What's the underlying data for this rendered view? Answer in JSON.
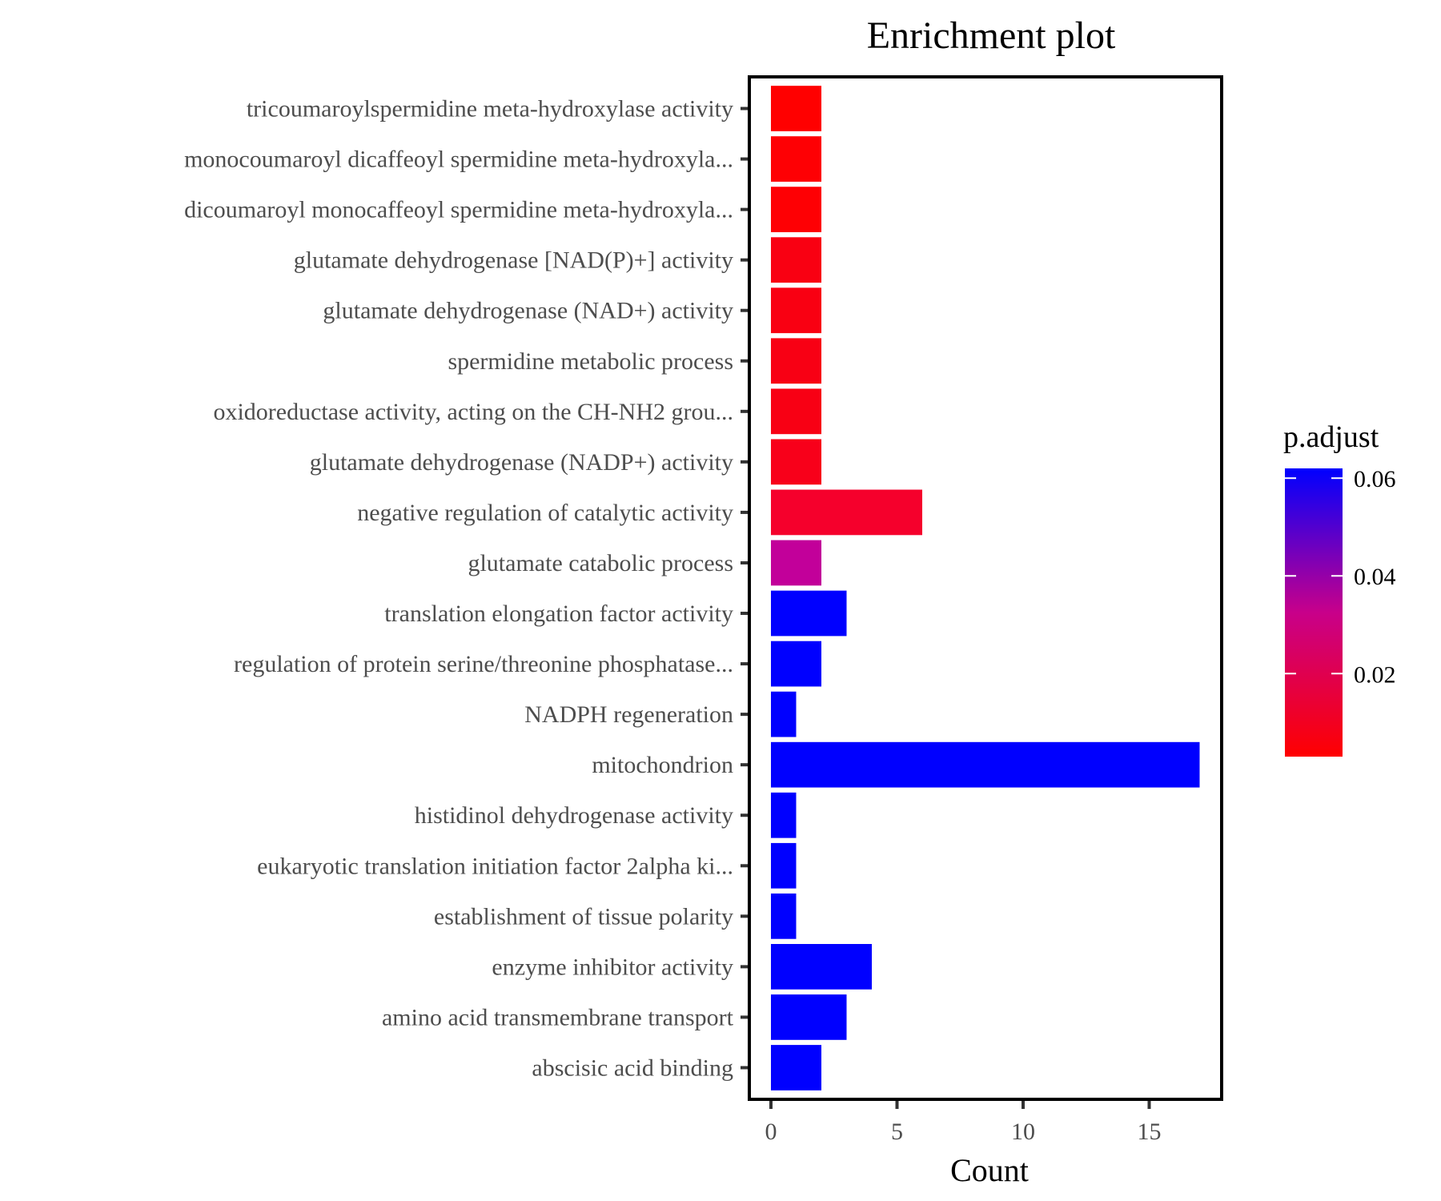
{
  "chart_data": {
    "type": "bar",
    "orientation": "horizontal",
    "title": "Enrichment plot",
    "xlabel": "Count",
    "ylabel": "",
    "xlim": [
      -0.8,
      17.8
    ],
    "xticks": [
      0,
      5,
      10,
      15
    ],
    "grid": false,
    "categories": [
      "tricoumaroylspermidine meta-hydroxylase activity",
      "monocoumaroyl dicaffeoyl spermidine meta-hydroxyla...",
      "dicoumaroyl monocaffeoyl spermidine meta-hydroxyla...",
      "glutamate dehydrogenase [NAD(P)+] activity",
      "glutamate dehydrogenase (NAD+) activity",
      "spermidine metabolic process",
      "oxidoreductase activity, acting on the CH-NH2 grou...",
      "glutamate dehydrogenase (NADP+) activity",
      "negative regulation of catalytic activity",
      "glutamate catabolic process",
      "translation elongation factor activity",
      "regulation of protein serine/threonine phosphatase...",
      "NADPH regeneration",
      "mitochondrion",
      "histidinol dehydrogenase activity",
      "eukaryotic translation initiation factor 2alpha ki...",
      "establishment of tissue polarity",
      "enzyme inhibitor activity",
      "amino acid transmembrane transport",
      "abscisic acid binding"
    ],
    "values": [
      2,
      2,
      2,
      2,
      2,
      2,
      2,
      2,
      6,
      2,
      3,
      2,
      1,
      17,
      1,
      1,
      1,
      4,
      3,
      2
    ],
    "color_values": [
      0.003,
      0.004,
      0.004,
      0.008,
      0.008,
      0.009,
      0.009,
      0.009,
      0.011,
      0.041,
      0.062,
      0.062,
      0.062,
      0.062,
      0.062,
      0.062,
      0.062,
      0.062,
      0.062,
      0.062
    ],
    "colors": [
      "#ff0000",
      "#fe0004",
      "#fe0004",
      "#f90012",
      "#f90012",
      "#f80014",
      "#f80014",
      "#f8001a",
      "#f5002c",
      "#c2009a",
      "#0000ff",
      "#0000ff",
      "#0000ff",
      "#0000ff",
      "#0000ff",
      "#0000ff",
      "#0000ff",
      "#0000ff",
      "#0000ff",
      "#0000ff"
    ],
    "legend": {
      "title": "p.adjust",
      "placement": "right",
      "type": "colorbar",
      "low_color": "#ff0000",
      "high_color": "#0000ff",
      "range": [
        0.003,
        0.062
      ],
      "ticks": [
        0.02,
        0.04,
        0.06
      ],
      "tick_labels": [
        "0.02",
        "0.04",
        "0.06"
      ]
    }
  }
}
